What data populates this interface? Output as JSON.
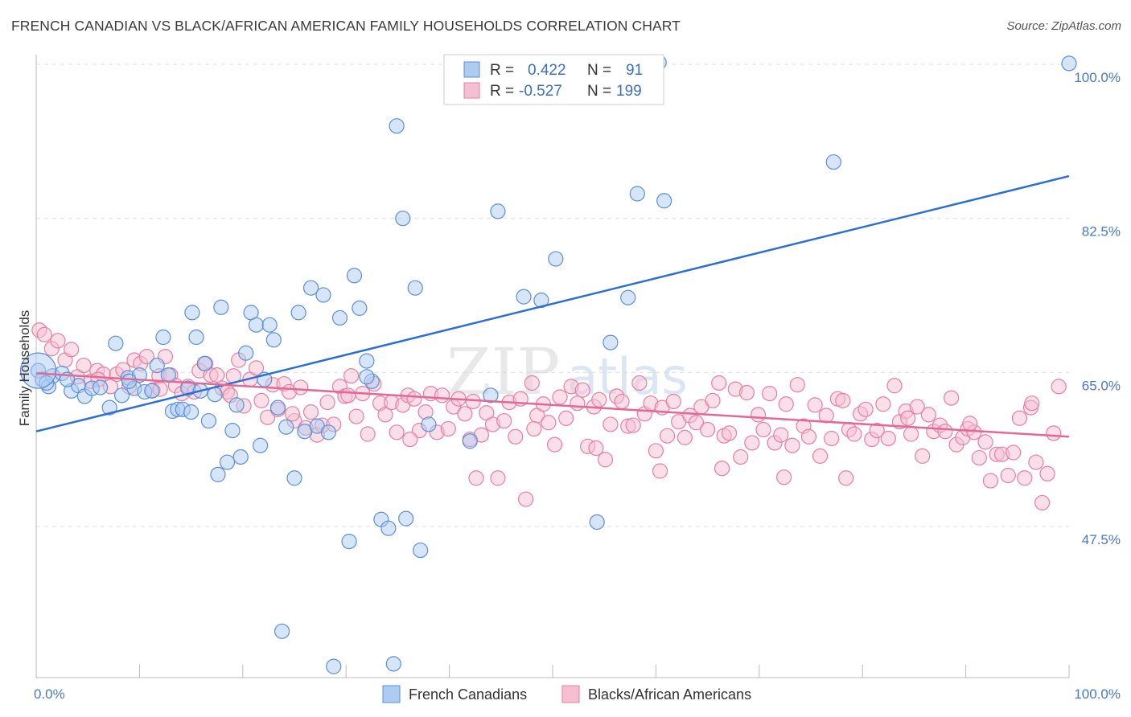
{
  "title": "FRENCH CANADIAN VS BLACK/AFRICAN AMERICAN FAMILY HOUSEHOLDS CORRELATION CHART",
  "source": "Source: ZipAtlas.com",
  "watermark": {
    "zip": "ZIP",
    "atlas": "atlas"
  },
  "colors": {
    "blue_fill": "#aecbf2",
    "blue_stroke": "#5b8fd6",
    "blue_line": "#2d6fd0",
    "pink_fill": "#f6bfd1",
    "pink_stroke": "#e67fa1",
    "pink_line": "#e06a95",
    "grid": "#dddddd",
    "tick_label": "#4a78c8"
  },
  "legend": {
    "rows": [
      {
        "r_label": "R =",
        "r_value": "0.422",
        "n_label": "N =",
        "n_value": "91"
      },
      {
        "r_label": "R =",
        "r_value": "-0.527",
        "n_label": "N =",
        "n_value": "199"
      }
    ]
  },
  "bottom_legend": [
    "French Canadians",
    "Blacks/African Americans"
  ],
  "chart_data": {
    "type": "scatter",
    "title": "FRENCH CANADIAN VS BLACK/AFRICAN AMERICAN FAMILY HOUSEHOLDS CORRELATION CHART",
    "xlabel": "",
    "ylabel": "Family Households",
    "xlim": [
      0,
      100
    ],
    "ylim": [
      31.5,
      102
    ],
    "x_tick_labels": [
      "0.0%",
      "100.0%"
    ],
    "y_ticks": [
      47.5,
      65.0,
      82.5,
      100.0
    ],
    "y_tick_labels": [
      "47.5%",
      "65.0%",
      "82.5%",
      "100.0%"
    ],
    "grid": true,
    "legend_placement": "top-center",
    "series": [
      {
        "name": "French Canadians",
        "r": 0.422,
        "n": 91,
        "trend": {
          "x": [
            0,
            100
          ],
          "y": [
            58.3,
            87.3
          ]
        },
        "points": [
          [
            0.2,
            65.2
          ],
          [
            0.6,
            64.2
          ],
          [
            1.2,
            63.4
          ],
          [
            1.6,
            64.6
          ],
          [
            2.5,
            64.9
          ],
          [
            3.4,
            62.9
          ],
          [
            4.1,
            63.5
          ],
          [
            4.7,
            62.3
          ],
          [
            5.4,
            63.2
          ],
          [
            6.2,
            63.3
          ],
          [
            7.1,
            61.0
          ],
          [
            7.7,
            68.3
          ],
          [
            8.3,
            62.4
          ],
          [
            8.9,
            64.4
          ],
          [
            9.5,
            63.2
          ],
          [
            10.0,
            64.7
          ],
          [
            10.5,
            62.8
          ],
          [
            11.2,
            62.9
          ],
          [
            11.7,
            65.8
          ],
          [
            12.3,
            69.0
          ],
          [
            12.8,
            64.7
          ],
          [
            13.2,
            60.6
          ],
          [
            13.7,
            60.8
          ],
          [
            14.2,
            60.8
          ],
          [
            14.7,
            63.2
          ],
          [
            15.1,
            71.8
          ],
          [
            15.5,
            69.0
          ],
          [
            15.9,
            62.9
          ],
          [
            16.3,
            66.0
          ],
          [
            16.7,
            59.5
          ],
          [
            17.3,
            62.5
          ],
          [
            17.6,
            53.4
          ],
          [
            17.9,
            72.4
          ],
          [
            18.5,
            54.8
          ],
          [
            19.0,
            58.4
          ],
          [
            19.4,
            61.3
          ],
          [
            19.8,
            55.4
          ],
          [
            20.3,
            67.2
          ],
          [
            20.8,
            71.8
          ],
          [
            21.3,
            70.4
          ],
          [
            21.7,
            56.7
          ],
          [
            22.1,
            64.2
          ],
          [
            22.6,
            70.4
          ],
          [
            23.0,
            68.7
          ],
          [
            23.4,
            61.0
          ],
          [
            23.8,
            35.6
          ],
          [
            24.2,
            58.8
          ],
          [
            25.0,
            53.0
          ],
          [
            25.4,
            71.8
          ],
          [
            26.0,
            58.3
          ],
          [
            26.6,
            74.6
          ],
          [
            27.2,
            58.9
          ],
          [
            27.8,
            73.8
          ],
          [
            28.3,
            58.2
          ],
          [
            28.8,
            31.6
          ],
          [
            29.4,
            71.2
          ],
          [
            30.3,
            45.8
          ],
          [
            30.8,
            76.0
          ],
          [
            31.3,
            72.3
          ],
          [
            32.0,
            66.3
          ],
          [
            32.5,
            64.0
          ],
          [
            33.4,
            48.3
          ],
          [
            34.1,
            47.3
          ],
          [
            34.6,
            31.9
          ],
          [
            34.9,
            93.0
          ],
          [
            35.5,
            82.5
          ],
          [
            35.8,
            48.4
          ],
          [
            36.7,
            74.6
          ],
          [
            37.2,
            44.8
          ],
          [
            38.0,
            59.1
          ],
          [
            42.0,
            57.2
          ],
          [
            44.0,
            62.4
          ],
          [
            44.7,
            83.3
          ],
          [
            47.2,
            73.6
          ],
          [
            48.9,
            73.2
          ],
          [
            50.3,
            77.9
          ],
          [
            53.0,
            100.0
          ],
          [
            53.8,
            100.2
          ],
          [
            54.3,
            48.0
          ],
          [
            55.6,
            68.4
          ],
          [
            57.3,
            73.5
          ],
          [
            58.2,
            85.3
          ],
          [
            60.3,
            100.2
          ],
          [
            60.8,
            84.5
          ],
          [
            77.2,
            88.9
          ],
          [
            100.0,
            100.1
          ],
          [
            1.0,
            63.8
          ],
          [
            3.0,
            64.2
          ],
          [
            9.0,
            64.0
          ],
          [
            15.0,
            60.5
          ],
          [
            32.0,
            64.5
          ]
        ]
      },
      {
        "name": "Blacks/African Americans",
        "r": -0.527,
        "n": 199,
        "trend": {
          "x": [
            0,
            100
          ],
          "y": [
            64.9,
            57.7
          ]
        },
        "points": [
          [
            0.3,
            69.8
          ],
          [
            0.8,
            69.3
          ],
          [
            1.5,
            67.7
          ],
          [
            2.1,
            68.6
          ],
          [
            2.8,
            66.4
          ],
          [
            3.4,
            67.6
          ],
          [
            4.0,
            64.5
          ],
          [
            4.6,
            65.8
          ],
          [
            5.3,
            64.0
          ],
          [
            5.9,
            65.2
          ],
          [
            6.5,
            64.8
          ],
          [
            7.2,
            63.4
          ],
          [
            7.8,
            64.8
          ],
          [
            8.4,
            65.3
          ],
          [
            9.0,
            63.4
          ],
          [
            9.5,
            66.4
          ],
          [
            10.1,
            66.0
          ],
          [
            10.7,
            66.8
          ],
          [
            11.3,
            63.0
          ],
          [
            11.9,
            64.6
          ],
          [
            12.5,
            66.8
          ],
          [
            13.0,
            64.7
          ],
          [
            13.5,
            63.5
          ],
          [
            14.1,
            62.6
          ],
          [
            14.7,
            63.4
          ],
          [
            15.3,
            62.8
          ],
          [
            15.8,
            65.2
          ],
          [
            16.4,
            66.0
          ],
          [
            16.9,
            64.7
          ],
          [
            17.5,
            64.7
          ],
          [
            18.0,
            63.2
          ],
          [
            18.5,
            62.8
          ],
          [
            19.1,
            64.6
          ],
          [
            19.6,
            66.4
          ],
          [
            20.1,
            61.2
          ],
          [
            20.7,
            64.2
          ],
          [
            21.3,
            65.5
          ],
          [
            21.8,
            61.8
          ],
          [
            22.4,
            59.9
          ],
          [
            22.9,
            63.6
          ],
          [
            23.4,
            60.8
          ],
          [
            24.0,
            63.7
          ],
          [
            24.5,
            62.8
          ],
          [
            25.0,
            59.5
          ],
          [
            25.6,
            63.3
          ],
          [
            26.1,
            58.7
          ],
          [
            26.6,
            60.5
          ],
          [
            27.2,
            57.9
          ],
          [
            27.7,
            59.0
          ],
          [
            28.2,
            61.6
          ],
          [
            28.8,
            59.1
          ],
          [
            29.4,
            63.4
          ],
          [
            29.9,
            62.3
          ],
          [
            30.5,
            64.6
          ],
          [
            31.0,
            60.0
          ],
          [
            31.6,
            62.6
          ],
          [
            32.1,
            58.0
          ],
          [
            32.7,
            63.7
          ],
          [
            33.3,
            61.5
          ],
          [
            33.8,
            60.2
          ],
          [
            34.4,
            61.6
          ],
          [
            34.9,
            58.2
          ],
          [
            35.5,
            61.3
          ],
          [
            36.0,
            62.4
          ],
          [
            36.6,
            62.0
          ],
          [
            37.1,
            58.4
          ],
          [
            37.7,
            60.5
          ],
          [
            38.2,
            62.6
          ],
          [
            38.8,
            58.2
          ],
          [
            39.3,
            62.4
          ],
          [
            39.9,
            58.6
          ],
          [
            40.4,
            61.1
          ],
          [
            40.9,
            62.0
          ],
          [
            41.5,
            60.3
          ],
          [
            42.0,
            57.4
          ],
          [
            42.6,
            53.0
          ],
          [
            43.1,
            57.9
          ],
          [
            43.6,
            60.4
          ],
          [
            44.2,
            59.1
          ],
          [
            44.7,
            53.0
          ],
          [
            45.3,
            59.5
          ],
          [
            45.8,
            61.6
          ],
          [
            46.4,
            57.7
          ],
          [
            46.9,
            62.0
          ],
          [
            47.4,
            50.6
          ],
          [
            48.0,
            63.8
          ],
          [
            48.5,
            60.1
          ],
          [
            49.1,
            61.4
          ],
          [
            49.6,
            59.3
          ],
          [
            50.2,
            56.8
          ],
          [
            50.7,
            62.2
          ],
          [
            51.3,
            59.8
          ],
          [
            51.8,
            63.4
          ],
          [
            52.4,
            61.5
          ],
          [
            52.9,
            63.0
          ],
          [
            53.4,
            56.6
          ],
          [
            54.0,
            61.1
          ],
          [
            54.5,
            61.9
          ],
          [
            55.1,
            55.1
          ],
          [
            55.6,
            59.1
          ],
          [
            56.2,
            62.3
          ],
          [
            56.7,
            61.7
          ],
          [
            57.3,
            58.9
          ],
          [
            57.8,
            59.0
          ],
          [
            58.4,
            63.8
          ],
          [
            58.9,
            60.3
          ],
          [
            59.5,
            61.5
          ],
          [
            60.0,
            56.1
          ],
          [
            60.6,
            61.0
          ],
          [
            61.1,
            57.8
          ],
          [
            61.7,
            61.7
          ],
          [
            62.2,
            59.4
          ],
          [
            62.8,
            57.6
          ],
          [
            63.3,
            60.1
          ],
          [
            63.9,
            59.3
          ],
          [
            64.4,
            61.1
          ],
          [
            65.0,
            58.5
          ],
          [
            65.5,
            61.8
          ],
          [
            66.1,
            63.8
          ],
          [
            66.6,
            57.8
          ],
          [
            67.1,
            58.1
          ],
          [
            67.7,
            63.1
          ],
          [
            68.2,
            55.4
          ],
          [
            68.8,
            62.7
          ],
          [
            69.3,
            57.0
          ],
          [
            69.9,
            60.2
          ],
          [
            70.4,
            58.5
          ],
          [
            71.0,
            62.6
          ],
          [
            71.5,
            57.0
          ],
          [
            72.1,
            57.9
          ],
          [
            72.6,
            61.4
          ],
          [
            73.2,
            56.7
          ],
          [
            73.7,
            63.6
          ],
          [
            74.3,
            58.9
          ],
          [
            74.8,
            57.7
          ],
          [
            75.4,
            61.3
          ],
          [
            75.9,
            55.5
          ],
          [
            76.5,
            60.1
          ],
          [
            77.0,
            57.5
          ],
          [
            77.6,
            62.0
          ],
          [
            78.1,
            61.8
          ],
          [
            78.7,
            58.5
          ],
          [
            79.2,
            58.0
          ],
          [
            79.8,
            60.3
          ],
          [
            80.3,
            60.8
          ],
          [
            80.9,
            57.4
          ],
          [
            81.4,
            58.4
          ],
          [
            82.0,
            61.4
          ],
          [
            82.5,
            57.5
          ],
          [
            83.1,
            63.5
          ],
          [
            83.6,
            59.4
          ],
          [
            84.2,
            60.6
          ],
          [
            84.7,
            58.0
          ],
          [
            85.3,
            61.1
          ],
          [
            85.8,
            55.5
          ],
          [
            86.4,
            60.2
          ],
          [
            86.9,
            58.3
          ],
          [
            87.5,
            59.0
          ],
          [
            88.0,
            58.3
          ],
          [
            88.6,
            62.1
          ],
          [
            89.1,
            56.8
          ],
          [
            89.7,
            57.6
          ],
          [
            90.2,
            58.6
          ],
          [
            90.8,
            58.2
          ],
          [
            91.3,
            55.3
          ],
          [
            91.9,
            57.1
          ],
          [
            92.4,
            52.7
          ],
          [
            93.0,
            55.7
          ],
          [
            93.5,
            55.7
          ],
          [
            94.1,
            53.3
          ],
          [
            94.6,
            55.9
          ],
          [
            95.2,
            59.8
          ],
          [
            95.7,
            53.0
          ],
          [
            96.3,
            61.0
          ],
          [
            96.8,
            54.8
          ],
          [
            97.4,
            50.2
          ],
          [
            97.9,
            53.5
          ],
          [
            98.5,
            58.1
          ],
          [
            99.0,
            63.4
          ],
          [
            6.0,
            64.2
          ],
          [
            12.0,
            63.1
          ],
          [
            18.8,
            62.4
          ],
          [
            24.8,
            60.3
          ],
          [
            30.2,
            62.4
          ],
          [
            36.2,
            57.4
          ],
          [
            42.3,
            61.7
          ],
          [
            48.2,
            58.6
          ],
          [
            54.2,
            56.4
          ],
          [
            60.4,
            53.8
          ],
          [
            66.4,
            54.1
          ],
          [
            72.4,
            53.1
          ],
          [
            78.4,
            53.0
          ],
          [
            84.4,
            59.8
          ],
          [
            90.4,
            59.2
          ],
          [
            96.4,
            61.5
          ]
        ]
      }
    ]
  }
}
